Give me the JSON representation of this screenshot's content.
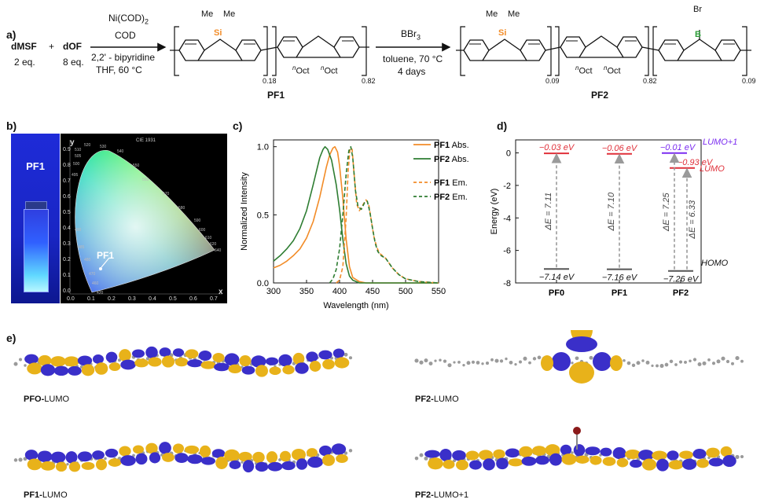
{
  "panel_a": {
    "label": "a)",
    "reactants": {
      "dmsf": "dMSF",
      "dmsf_eq": "2 eq.",
      "plus": "+",
      "dof": "dOF",
      "dof_eq": "8 eq."
    },
    "reaction1": {
      "reagent1": "Ni(COD)",
      "reagent1_sub": "2",
      "reagent2": "COD",
      "cond1": "2,2' - bipyridine",
      "cond2": "THF, 60 °C"
    },
    "reaction2": {
      "reagent": "BBr",
      "reagent_sub": "3",
      "cond1": "toluene, 70 °C",
      "cond2": "4 days"
    },
    "pf1": {
      "name": "PF1",
      "me1": "Me",
      "me2": "Me",
      "si": "Si",
      "oct_sup": "n",
      "oct": "Oct",
      "sub_si": "0.18",
      "sub_oct": "0.82"
    },
    "pf2": {
      "name": "PF2",
      "me1": "Me",
      "me2": "Me",
      "si": "Si",
      "oct_sup": "n",
      "oct": "Oct",
      "br": "Br",
      "b": "B",
      "sub_si": "0.09",
      "sub_oct": "0.82",
      "sub_b": "0.09"
    }
  },
  "panel_b": {
    "label": "b)",
    "vial_label": "PF1",
    "cie_title": "CIE 1931",
    "y_axis": "y",
    "x_axis": "x",
    "point_label": "PF1",
    "y_ticks": [
      "0.9",
      "0.8",
      "0.7",
      "0.6",
      "0.5",
      "0.4",
      "0.3",
      "0.2",
      "0.1",
      "0.0"
    ],
    "x_ticks": [
      "0.0",
      "0.1",
      "0.2",
      "0.3",
      "0.4",
      "0.5",
      "0.6",
      "0.7"
    ],
    "wavelength_marks": [
      "520",
      "530",
      "510",
      "540",
      "505",
      "550",
      "560",
      "500",
      "570",
      "580",
      "495",
      "590",
      "600",
      "610",
      "620",
      "640",
      "490",
      "485",
      "480",
      "470",
      "460",
      "420"
    ]
  },
  "panel_c": {
    "label": "c)",
    "chart_data": {
      "type": "line",
      "xlabel": "Wavelength (nm)",
      "ylabel": "Normalized Intensity",
      "xlim": [
        300,
        550
      ],
      "ylim": [
        0,
        1.05
      ],
      "x_ticks": [
        "300",
        "350",
        "400",
        "450",
        "500",
        "550"
      ],
      "y_ticks": [
        "0.0",
        "0.5",
        "1.0"
      ],
      "legend_placement": "top-right",
      "series": [
        {
          "name": "PF1",
          "suffix": "Abs.",
          "color": "#f28c28",
          "dash": false,
          "x": [
            300,
            310,
            320,
            330,
            340,
            350,
            360,
            370,
            380,
            385,
            390,
            393,
            397,
            400,
            405,
            410,
            415,
            420,
            430,
            440,
            460,
            500,
            550
          ],
          "y": [
            0.11,
            0.13,
            0.16,
            0.2,
            0.25,
            0.33,
            0.45,
            0.63,
            0.85,
            0.94,
            0.99,
            1.0,
            0.96,
            0.86,
            0.62,
            0.32,
            0.12,
            0.04,
            0.01,
            0.0,
            0.0,
            0.0,
            0.0
          ]
        },
        {
          "name": "PF2",
          "suffix": "Abs.",
          "color": "#2e7d32",
          "dash": false,
          "x": [
            300,
            310,
            320,
            330,
            340,
            350,
            360,
            370,
            375,
            378,
            382,
            388,
            395,
            400,
            405,
            410,
            415,
            420,
            430,
            450,
            500,
            550
          ],
          "y": [
            0.16,
            0.2,
            0.25,
            0.31,
            0.4,
            0.53,
            0.72,
            0.92,
            0.98,
            1.0,
            0.98,
            0.9,
            0.72,
            0.54,
            0.32,
            0.14,
            0.05,
            0.02,
            0.0,
            0.0,
            0.0,
            0.0
          ]
        },
        {
          "name": "PF1",
          "suffix": "Em.",
          "color": "#f28c28",
          "dash": true,
          "x": [
            395,
            400,
            405,
            410,
            413,
            416,
            419,
            422,
            426,
            430,
            435,
            440,
            444,
            448,
            452,
            456,
            460,
            465,
            470,
            480,
            490,
            500,
            520,
            550
          ],
          "y": [
            0.0,
            0.02,
            0.12,
            0.48,
            0.82,
            0.99,
            0.98,
            0.8,
            0.58,
            0.53,
            0.57,
            0.61,
            0.58,
            0.46,
            0.34,
            0.27,
            0.22,
            0.2,
            0.18,
            0.11,
            0.06,
            0.03,
            0.01,
            0.0
          ]
        },
        {
          "name": "PF2",
          "suffix": "Em.",
          "color": "#2e7d32",
          "dash": true,
          "x": [
            385,
            390,
            395,
            400,
            405,
            410,
            414,
            417,
            420,
            424,
            428,
            433,
            438,
            442,
            446,
            450,
            454,
            458,
            463,
            470,
            480,
            490,
            500,
            520,
            550
          ],
          "y": [
            0.0,
            0.03,
            0.1,
            0.25,
            0.5,
            0.8,
            0.97,
            1.0,
            0.92,
            0.68,
            0.56,
            0.54,
            0.59,
            0.6,
            0.52,
            0.4,
            0.29,
            0.23,
            0.2,
            0.18,
            0.11,
            0.06,
            0.03,
            0.01,
            0.0
          ]
        }
      ]
    }
  },
  "panel_d": {
    "label": "d)",
    "chart_data": {
      "type": "energy-level diagram",
      "ylabel": "Energy (eV)",
      "ylim": [
        -8,
        0.8
      ],
      "y_ticks": [
        "0",
        "-2",
        "-4",
        "-6",
        "-8"
      ],
      "categories": [
        "PF0",
        "PF1",
        "PF2"
      ],
      "levels": [
        {
          "column": "PF0",
          "lumo": -0.03,
          "lumo_label": "−0.03 eV",
          "homo": -7.14,
          "homo_label": "−7.14 eV",
          "gap_label": "ΔE = 7.11"
        },
        {
          "column": "PF1",
          "lumo": -0.06,
          "lumo_label": "−0.06 eV",
          "homo": -7.16,
          "homo_label": "−7.16 eV",
          "gap_label": "ΔE = 7.10"
        },
        {
          "column": "PF2",
          "lumo1": -0.01,
          "lumo1_label": "−0.01 eV",
          "lumo": -0.93,
          "lumo_label": "−0.93 eV",
          "homo": -7.26,
          "homo_label": "−7.26 eV",
          "gap1_label": "ΔE = 7.25",
          "gap_label": "ΔE = 6.33"
        }
      ],
      "legend": {
        "lumo1": "LUMO+1",
        "lumo": "LUMO",
        "homo": "HOMO"
      },
      "colors": {
        "lumo": "#e0303a",
        "lumo1": "#7b2cf0",
        "homo": "#555555",
        "arrow": "#9a9a9a"
      }
    }
  },
  "panel_e": {
    "label": "e)",
    "captions": [
      {
        "bold": "PFO-",
        "rest": "LUMO"
      },
      {
        "bold": "PF2-",
        "rest": "LUMO"
      },
      {
        "bold": "PF1-",
        "rest": "LUMO"
      },
      {
        "bold": "PF2-",
        "rest": "LUMO+1"
      }
    ],
    "colors": {
      "lobe_a": "#3a2fc9",
      "lobe_b": "#e8b21a",
      "atom": "#9a9a9a"
    }
  }
}
